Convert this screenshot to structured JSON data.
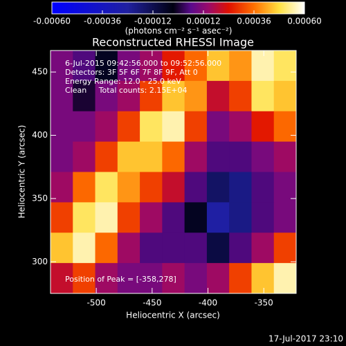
{
  "chart_data": {
    "type": "heatmap",
    "title": "Reconstructed RHESSI Image",
    "colorbar_label": "(photons cm⁻² s⁻¹ asec⁻²)",
    "colorbar_lim": [
      -0.0006,
      0.0006
    ],
    "colorbar_ticks": [
      {
        "value": -0.0006,
        "label": "-0.00060"
      },
      -0.00036,
      -0.00012,
      0.00012,
      0.00036,
      {
        "value": 0.0006,
        "label": "0.00060"
      }
    ],
    "x_label": "Heliocentric X (arcsec)",
    "y_label": "Heliocentric Y (arcsec)",
    "annotations": [
      "6-Jul-2015 09:42:56.000 to 09:52:56.000",
      "Detectors: 3F 5F 6F 7F 8F 9F, Att 0",
      "Energy Range: 12.0 - 25.0 keV",
      "Clean     Total counts: 2.15E+04"
    ],
    "peak_label": "Position of Peak = [-358,278]",
    "timestamp": "17-Jul-2017 23:10",
    "xlim": [
      -541,
      -321
    ],
    "ylim": [
      275,
      467
    ],
    "xticks": [
      -500,
      -450,
      -400,
      -350
    ],
    "yticks": [
      300,
      350,
      400,
      450
    ],
    "x": [
      -531,
      -511,
      -491,
      -471,
      -451,
      -431,
      -411,
      -391,
      -371,
      -351,
      -331
    ],
    "y": [
      455,
      431,
      407,
      383,
      359,
      335,
      311,
      287
    ],
    "z": [
      [
        0.0001,
        5e-05,
        -5e-05,
        0.0001,
        0.00015,
        0.00025,
        0.00035,
        0.00045,
        0.0004,
        0.00055,
        0.0005
      ],
      [
        0.0001,
        0,
        0.0001,
        0.00015,
        0.0003,
        0.00045,
        0.0004,
        0.0002,
        0.0003,
        0.0005,
        0.00045
      ],
      [
        0.0001,
        0.0001,
        0.00015,
        0.0003,
        0.0005,
        0.00055,
        0.0003,
        0.0001,
        0.00015,
        0.00025,
        0.00035
      ],
      [
        0.0001,
        0.00015,
        0.0003,
        0.00045,
        0.00045,
        0.00035,
        0.00015,
        5e-05,
        5e-05,
        0.0001,
        0.00015
      ],
      [
        0.00015,
        0.00035,
        0.0005,
        0.0004,
        0.0003,
        0.0002,
        5e-05,
        -0.00015,
        -0.0002,
        5e-05,
        0.0001
      ],
      [
        0.0003,
        0.0005,
        0.00055,
        0.0003,
        0.00015,
        5e-05,
        -5e-05,
        -0.00025,
        -0.0002,
        5e-05,
        0.0001
      ],
      [
        0.00045,
        0.00055,
        0.00035,
        0.00015,
        5e-05,
        5e-05,
        5e-05,
        -0.0001,
        5e-05,
        0.00015,
        0.0003
      ],
      [
        0.0002,
        0.0003,
        0.00015,
        0.0001,
        0.0001,
        0.00015,
        0.0001,
        0.00015,
        0.0003,
        0.00045,
        0.00055
      ]
    ]
  }
}
